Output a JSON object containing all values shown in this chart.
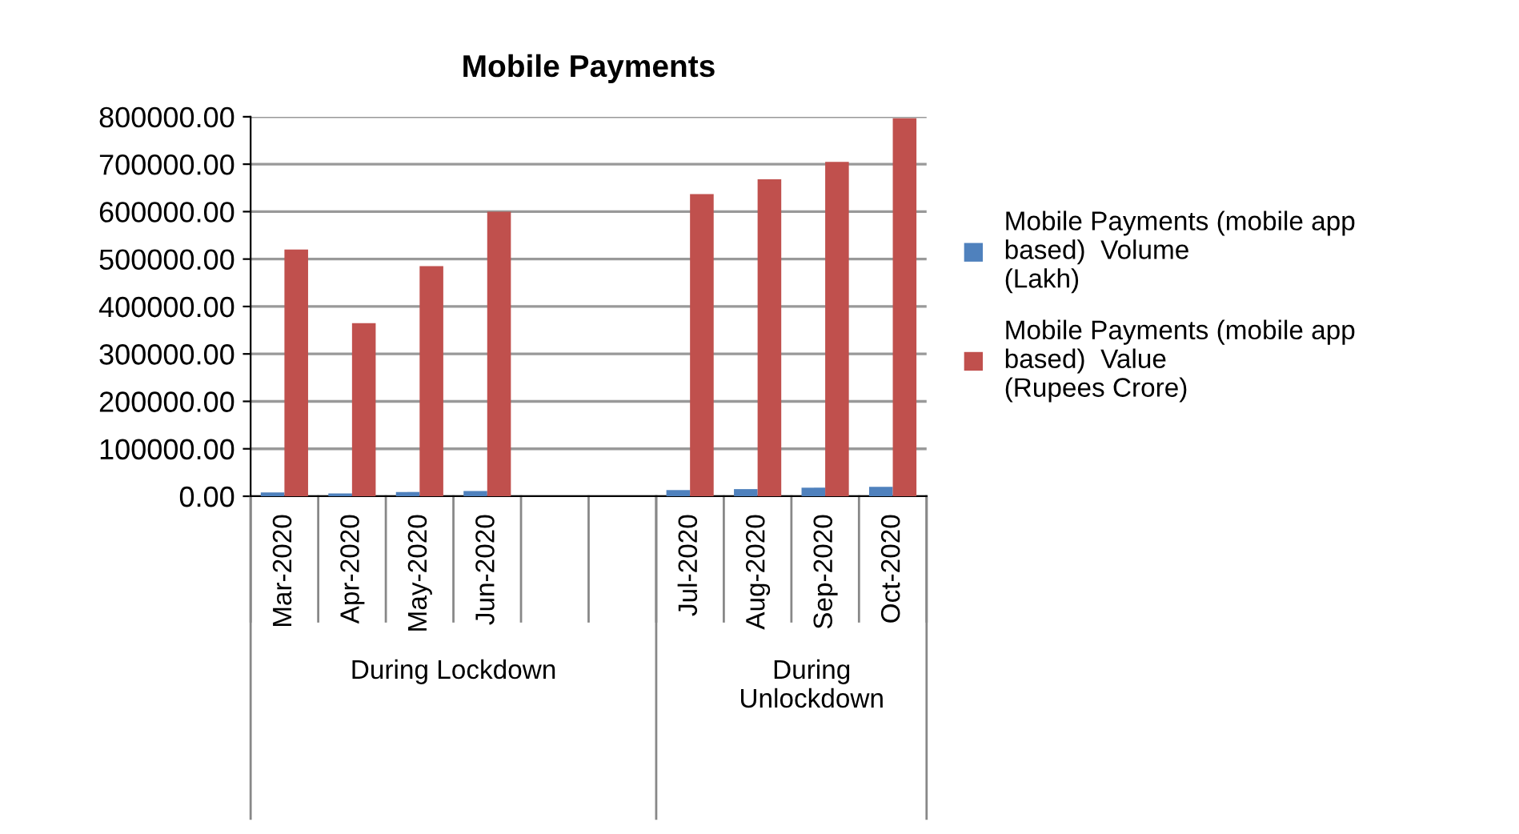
{
  "chart_data": {
    "type": "bar",
    "title": "Mobile Payments",
    "categories": [
      "Mar-2020",
      "Apr-2020",
      "May-2020",
      "Jun-2020",
      null,
      null,
      "Jul-2020",
      "Aug-2020",
      "Sep-2020",
      "Oct-2020"
    ],
    "series": [
      {
        "name": "Mobile Payments (mobile app\nbased)  Volume\n(Lakh)",
        "color": "#4f81bd",
        "values": [
          8000,
          6000,
          9000,
          11000,
          null,
          null,
          13000,
          15000,
          18000,
          20000
        ]
      },
      {
        "name": "Mobile Payments (mobile app\nbased)  Value\n(Rupees Crore)",
        "color": "#c0504d",
        "values": [
          520000,
          365000,
          485000,
          600000,
          null,
          null,
          637000,
          668000,
          705000,
          797000
        ]
      }
    ],
    "ylim": [
      0,
      800000
    ],
    "yticks": [
      {
        "value": 0,
        "label": "0.00"
      },
      {
        "value": 100000,
        "label": "100000.00"
      },
      {
        "value": 200000,
        "label": "200000.00"
      },
      {
        "value": 300000,
        "label": "300000.00"
      },
      {
        "value": 400000,
        "label": "400000.00"
      },
      {
        "value": 500000,
        "label": "500000.00"
      },
      {
        "value": 600000,
        "label": "600000.00"
      },
      {
        "value": 700000,
        "label": "700000.00"
      },
      {
        "value": 800000,
        "label": "800000.00"
      }
    ],
    "annotations": [
      "During Lockdown",
      "During\nUnlockdown"
    ],
    "grid": "y",
    "legend": "right"
  }
}
